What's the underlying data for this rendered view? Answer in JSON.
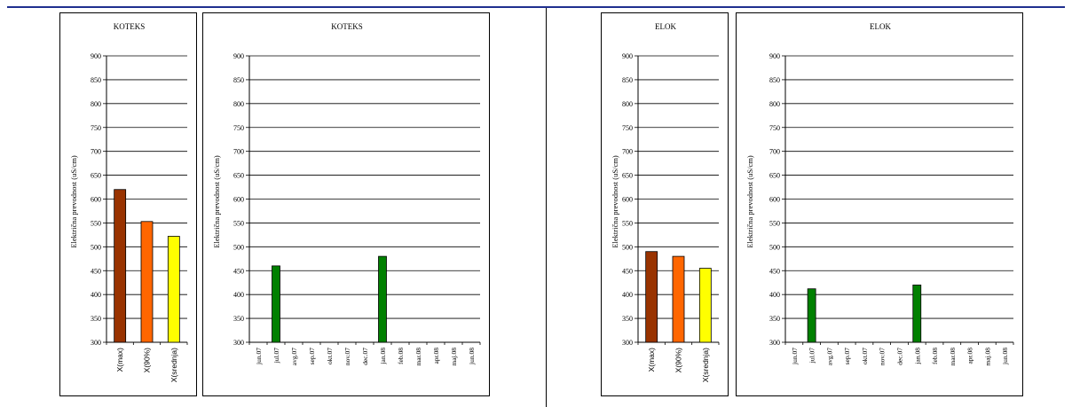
{
  "chart_data": [
    {
      "type": "bar",
      "title": "KOTEKS",
      "ylabel": "Električna prevodnost (uS/cm)",
      "categories": [
        "X(max)",
        "X(90%)",
        "X(srednja)"
      ],
      "values": [
        620,
        553,
        522
      ],
      "colors": [
        "#993300",
        "#ff6600",
        "#ffff00"
      ],
      "ylim": [
        300,
        900
      ],
      "yticks": [
        "300",
        "350",
        "400",
        "450",
        "500",
        "550",
        "600",
        "650",
        "700",
        "750",
        "800",
        "850",
        "900"
      ],
      "grid": true
    },
    {
      "type": "bar",
      "title": "KOTEKS",
      "ylabel": "Električna prevodnost (uS/cm)",
      "categories": [
        "jun.07",
        "jul.07",
        "avg.07",
        "sep.07",
        "okt.07",
        "nov.07",
        "dec.07",
        "jan.08",
        "feb.08",
        "mar.08",
        "apr.08",
        "maj.08",
        "jun.08"
      ],
      "values": [
        null,
        460,
        null,
        null,
        null,
        null,
        null,
        480,
        null,
        null,
        null,
        null,
        null
      ],
      "colors": [
        "#008000"
      ],
      "ylim": [
        300,
        900
      ],
      "yticks": [
        "300",
        "350",
        "400",
        "450",
        "500",
        "550",
        "600",
        "650",
        "700",
        "750",
        "800",
        "850",
        "900"
      ],
      "grid": true
    },
    {
      "type": "bar",
      "title": "ELOK",
      "ylabel": "Električna prevodnost (uS/cm)",
      "categories": [
        "X(max)",
        "X(90%)",
        "X(srednja)"
      ],
      "values": [
        490,
        480,
        455
      ],
      "colors": [
        "#993300",
        "#ff6600",
        "#ffff00"
      ],
      "ylim": [
        300,
        900
      ],
      "yticks": [
        "300",
        "350",
        "400",
        "450",
        "500",
        "550",
        "600",
        "650",
        "700",
        "750",
        "800",
        "850",
        "900"
      ],
      "grid": true
    },
    {
      "type": "bar",
      "title": "ELOK",
      "ylabel": "Električna prevodnost (uS/cm)",
      "categories": [
        "jun.07",
        "jul.07",
        "avg.07",
        "sep.07",
        "okt.07",
        "nov.07",
        "dec.07",
        "jan.08",
        "feb.08",
        "mar.08",
        "apr.08",
        "maj.08",
        "jun.08"
      ],
      "values": [
        null,
        412,
        null,
        null,
        null,
        null,
        null,
        420,
        null,
        null,
        null,
        null,
        null
      ],
      "colors": [
        "#008000"
      ],
      "ylim": [
        300,
        900
      ],
      "yticks": [
        "300",
        "350",
        "400",
        "450",
        "500",
        "550",
        "600",
        "650",
        "700",
        "750",
        "800",
        "850",
        "900"
      ],
      "grid": true
    }
  ]
}
